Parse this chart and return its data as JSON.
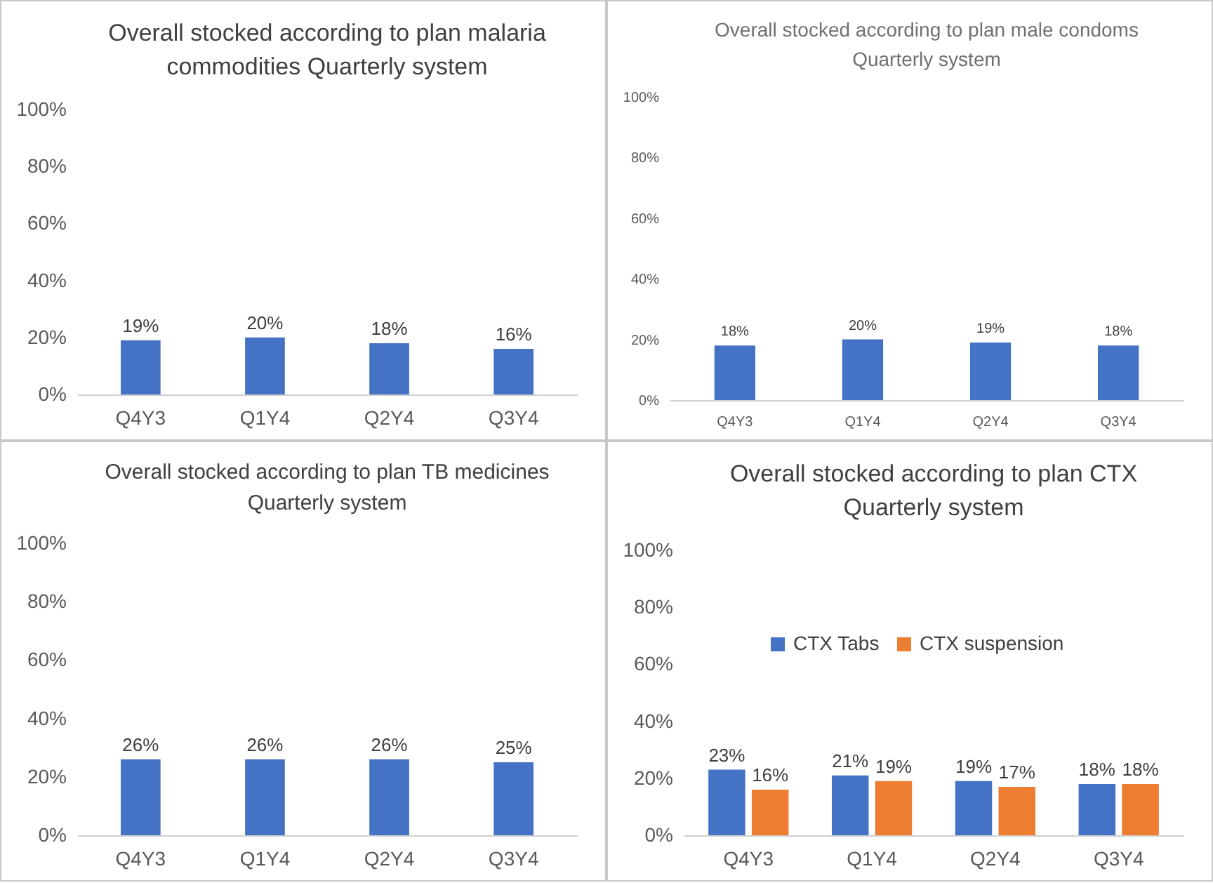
{
  "chart_data": [
    {
      "type": "bar",
      "title": "Overall stocked according to plan malaria commodities Quarterly system",
      "categories": [
        "Q4Y3",
        "Q1Y4",
        "Q2Y4",
        "Q3Y4"
      ],
      "values": [
        19,
        20,
        18,
        16
      ],
      "color": "#4472c4",
      "ylim": [
        0,
        100
      ],
      "yticks": [
        {
          "value": 0,
          "label": "0%"
        },
        {
          "value": 20,
          "label": "20%"
        },
        {
          "value": 40,
          "label": "40%"
        },
        {
          "value": 60,
          "label": "60%"
        },
        {
          "value": 80,
          "label": "80%"
        },
        {
          "value": 100,
          "label": "100%"
        }
      ],
      "value_labels": [
        "19%",
        "20%",
        "18%",
        "16%"
      ],
      "grid": false,
      "legend": false
    },
    {
      "type": "bar",
      "title": "Overall stocked according to plan male condoms Quarterly system",
      "categories": [
        "Q4Y3",
        "Q1Y4",
        "Q2Y4",
        "Q3Y4"
      ],
      "values": [
        18,
        20,
        19,
        18
      ],
      "color": "#4472c4",
      "ylim": [
        0,
        100
      ],
      "yticks": [
        {
          "value": 0,
          "label": "0%"
        },
        {
          "value": 20,
          "label": "20%"
        },
        {
          "value": 40,
          "label": "40%"
        },
        {
          "value": 60,
          "label": "60%"
        },
        {
          "value": 80,
          "label": "80%"
        },
        {
          "value": 100,
          "label": "100%"
        }
      ],
      "value_labels": [
        "18%",
        "20%",
        "19%",
        "18%"
      ],
      "grid": false,
      "legend": false
    },
    {
      "type": "bar",
      "title": "Overall stocked according to plan TB medicines Quarterly system",
      "categories": [
        "Q4Y3",
        "Q1Y4",
        "Q2Y4",
        "Q3Y4"
      ],
      "values": [
        26,
        26,
        26,
        25
      ],
      "color": "#4472c4",
      "ylim": [
        0,
        100
      ],
      "yticks": [
        {
          "value": 0,
          "label": "0%"
        },
        {
          "value": 20,
          "label": "20%"
        },
        {
          "value": 40,
          "label": "40%"
        },
        {
          "value": 60,
          "label": "60%"
        },
        {
          "value": 80,
          "label": "80%"
        },
        {
          "value": 100,
          "label": "100%"
        }
      ],
      "value_labels": [
        "26%",
        "26%",
        "26%",
        "25%"
      ],
      "grid": false,
      "legend": false
    },
    {
      "type": "bar",
      "title": "Overall stocked according to plan CTX Quarterly system",
      "categories": [
        "Q4Y3",
        "Q1Y4",
        "Q2Y4",
        "Q3Y4"
      ],
      "series": [
        {
          "name": "CTX Tabs",
          "color": "#4472c4",
          "values": [
            23,
            21,
            19,
            18
          ],
          "value_labels": [
            "23%",
            "21%",
            "19%",
            "18%"
          ]
        },
        {
          "name": "CTX suspension",
          "color": "#ed7d31",
          "values": [
            16,
            19,
            17,
            18
          ],
          "value_labels": [
            "16%",
            "19%",
            "17%",
            "18%"
          ]
        }
      ],
      "ylim": [
        0,
        100
      ],
      "yticks": [
        {
          "value": 0,
          "label": "0%"
        },
        {
          "value": 20,
          "label": "20%"
        },
        {
          "value": 40,
          "label": "40%"
        },
        {
          "value": 60,
          "label": "60%"
        },
        {
          "value": 80,
          "label": "80%"
        },
        {
          "value": 100,
          "label": "100%"
        }
      ],
      "grid": false,
      "legend": "top"
    }
  ]
}
